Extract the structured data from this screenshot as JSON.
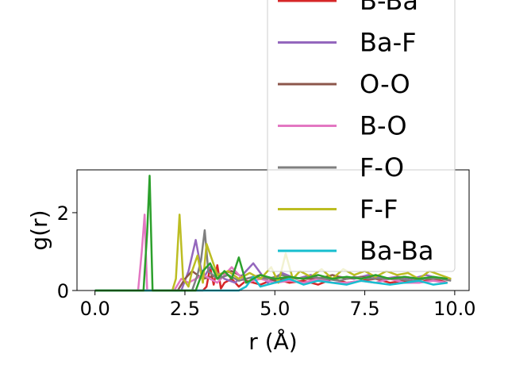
{
  "chart_data": {
    "type": "line",
    "title": "",
    "xlabel": "r (Å)",
    "ylabel": "g(r)",
    "xlim": [
      -0.5,
      10.4
    ],
    "ylim": [
      0,
      3.1
    ],
    "xticks": [
      0.0,
      2.5,
      5.0,
      7.5,
      10.0
    ],
    "xtick_labels": [
      "0.0",
      "2.5",
      "5.0",
      "7.5",
      "10.0"
    ],
    "yticks": [
      0,
      2
    ],
    "ytick_labels": [
      "0",
      "2"
    ],
    "grid": false,
    "legend_position": "upper-right (extends above axes)",
    "series": [
      {
        "name": "B-Ba",
        "color": "#d62728",
        "x": [
          0,
          3.0,
          3.1,
          3.2,
          3.3,
          3.4,
          3.5,
          3.6,
          3.8,
          4.0,
          4.2,
          4.6,
          5.0,
          5.4,
          5.8,
          6.2,
          6.6,
          7.0,
          7.4,
          7.8,
          8.2,
          8.6,
          9.0,
          9.4,
          9.8
        ],
        "y": [
          0,
          0,
          0.1,
          0.6,
          0.15,
          0.65,
          0.05,
          0.2,
          0.3,
          0.1,
          0.25,
          0.15,
          0.3,
          0.2,
          0.25,
          0.15,
          0.3,
          0.2,
          0.25,
          0.3,
          0.2,
          0.25,
          0.2,
          0.3,
          0.2
        ]
      },
      {
        "name": "Ba-F",
        "color": "#9467bd",
        "x": [
          0,
          2.4,
          2.6,
          2.8,
          2.9,
          3.0,
          3.2,
          3.6,
          3.9,
          4.1,
          4.4,
          4.8,
          5.2,
          5.6,
          6.0,
          6.4,
          6.8,
          7.2,
          7.6,
          8.0,
          8.4,
          8.8,
          9.2,
          9.6,
          9.9
        ],
        "y": [
          0,
          0,
          0.5,
          1.3,
          0.8,
          0.3,
          0.6,
          0.3,
          0.2,
          0.4,
          0.7,
          0.2,
          0.45,
          0.3,
          0.4,
          0.25,
          0.35,
          0.3,
          0.4,
          0.3,
          0.35,
          0.3,
          0.4,
          0.3,
          0.3
        ]
      },
      {
        "name": "O-O",
        "color": "#8c564b",
        "x": [
          0,
          2.3,
          2.5,
          2.7,
          3.0,
          3.4,
          3.8,
          4.2,
          4.6,
          5.0,
          5.4,
          5.8,
          6.2,
          6.6,
          7.0,
          7.4,
          7.8,
          8.2,
          8.6,
          9.0,
          9.4,
          9.8
        ],
        "y": [
          0,
          0,
          0.3,
          0.5,
          0.3,
          0.4,
          0.5,
          0.3,
          0.4,
          0.25,
          0.35,
          0.3,
          0.3,
          0.4,
          0.3,
          0.35,
          0.3,
          0.3,
          0.35,
          0.3,
          0.3,
          0.3
        ]
      },
      {
        "name": "B-O",
        "color": "#e377c2",
        "x": [
          0,
          1.2,
          1.3,
          1.38,
          1.45,
          2.2,
          2.4,
          2.6,
          3.0,
          3.4,
          3.8,
          4.2,
          4.6,
          5.0,
          5.4,
          5.8,
          6.2,
          6.6,
          7.0,
          7.4,
          7.8,
          8.2,
          8.6,
          9.0,
          9.4,
          9.8
        ],
        "y": [
          0,
          0,
          1.0,
          1.95,
          0,
          0,
          0.3,
          0.2,
          0.4,
          0.2,
          0.6,
          0.2,
          0.3,
          0.2,
          0.25,
          0.2,
          0.3,
          0.2,
          0.2,
          0.25,
          0.2,
          0.3,
          0.2,
          0.2,
          0.25,
          0.2
        ]
      },
      {
        "name": "F-O",
        "color": "#7f7f7f",
        "x": [
          0,
          2.7,
          2.85,
          2.95,
          3.05,
          3.15,
          3.4,
          3.7,
          4.0,
          4.4,
          4.8,
          5.2,
          5.6,
          6.0,
          6.4,
          6.8,
          7.2,
          7.6,
          8.0,
          8.4,
          8.8,
          9.2,
          9.6,
          9.9
        ],
        "y": [
          0,
          0,
          0.4,
          0.8,
          1.55,
          0.5,
          0.3,
          0.4,
          0.25,
          0.35,
          0.3,
          0.4,
          0.3,
          0.35,
          0.3,
          0.25,
          0.35,
          0.3,
          0.3,
          0.3,
          0.25,
          0.3,
          0.3,
          0.25
        ]
      },
      {
        "name": "F-F",
        "color": "#bcbd22",
        "x": [
          0,
          2.15,
          2.25,
          2.35,
          2.45,
          2.6,
          2.7,
          2.85,
          3.0,
          3.1,
          3.4,
          3.7,
          4.0,
          4.3,
          4.6,
          4.9,
          5.1,
          5.3,
          5.5,
          5.7,
          6.0,
          6.3,
          6.6,
          6.9,
          7.2,
          7.5,
          7.8,
          8.1,
          8.4,
          8.7,
          9.0,
          9.3,
          9.6,
          9.9
        ],
        "y": [
          0,
          0,
          0.3,
          1.95,
          0.3,
          0.1,
          0.5,
          0.9,
          0.2,
          1.2,
          0.4,
          0.5,
          0.3,
          0.45,
          0.3,
          0.6,
          0.2,
          0.95,
          0.3,
          0.5,
          0.35,
          0.55,
          0.3,
          0.55,
          0.4,
          0.5,
          0.35,
          0.5,
          0.4,
          0.45,
          0.3,
          0.5,
          0.4,
          0.3
        ]
      },
      {
        "name": "Ba-Ba",
        "color": "#17becf",
        "x": [
          0,
          4.0,
          4.2,
          4.4,
          4.6,
          5.0,
          5.4,
          5.8,
          6.2,
          6.6,
          7.0,
          7.4,
          7.8,
          8.2,
          8.6,
          9.0,
          9.4,
          9.8
        ],
        "y": [
          0,
          0,
          0.1,
          0.35,
          0.1,
          0.2,
          0.3,
          0.15,
          0.25,
          0.2,
          0.15,
          0.25,
          0.2,
          0.15,
          0.2,
          0.25,
          0.15,
          0.2
        ]
      },
      {
        "name": "",
        "color": "#2ca02c",
        "x": [
          0,
          1.35,
          1.45,
          1.52,
          1.6,
          2.8,
          3.0,
          3.2,
          3.4,
          3.6,
          3.8,
          4.0,
          4.2,
          4.6,
          5.0,
          5.4,
          5.8,
          6.2,
          6.6,
          7.0,
          7.4,
          7.8,
          8.2,
          8.6,
          9.0,
          9.4,
          9.8
        ],
        "y": [
          0,
          0,
          1.5,
          2.95,
          0,
          0,
          0.5,
          0.7,
          0.3,
          0.5,
          0.3,
          0.85,
          0.2,
          0.4,
          0.3,
          0.35,
          0.3,
          0.4,
          0.3,
          0.35,
          0.3,
          0.4,
          0.3,
          0.35,
          0.3,
          0.35,
          0.3
        ]
      }
    ]
  }
}
